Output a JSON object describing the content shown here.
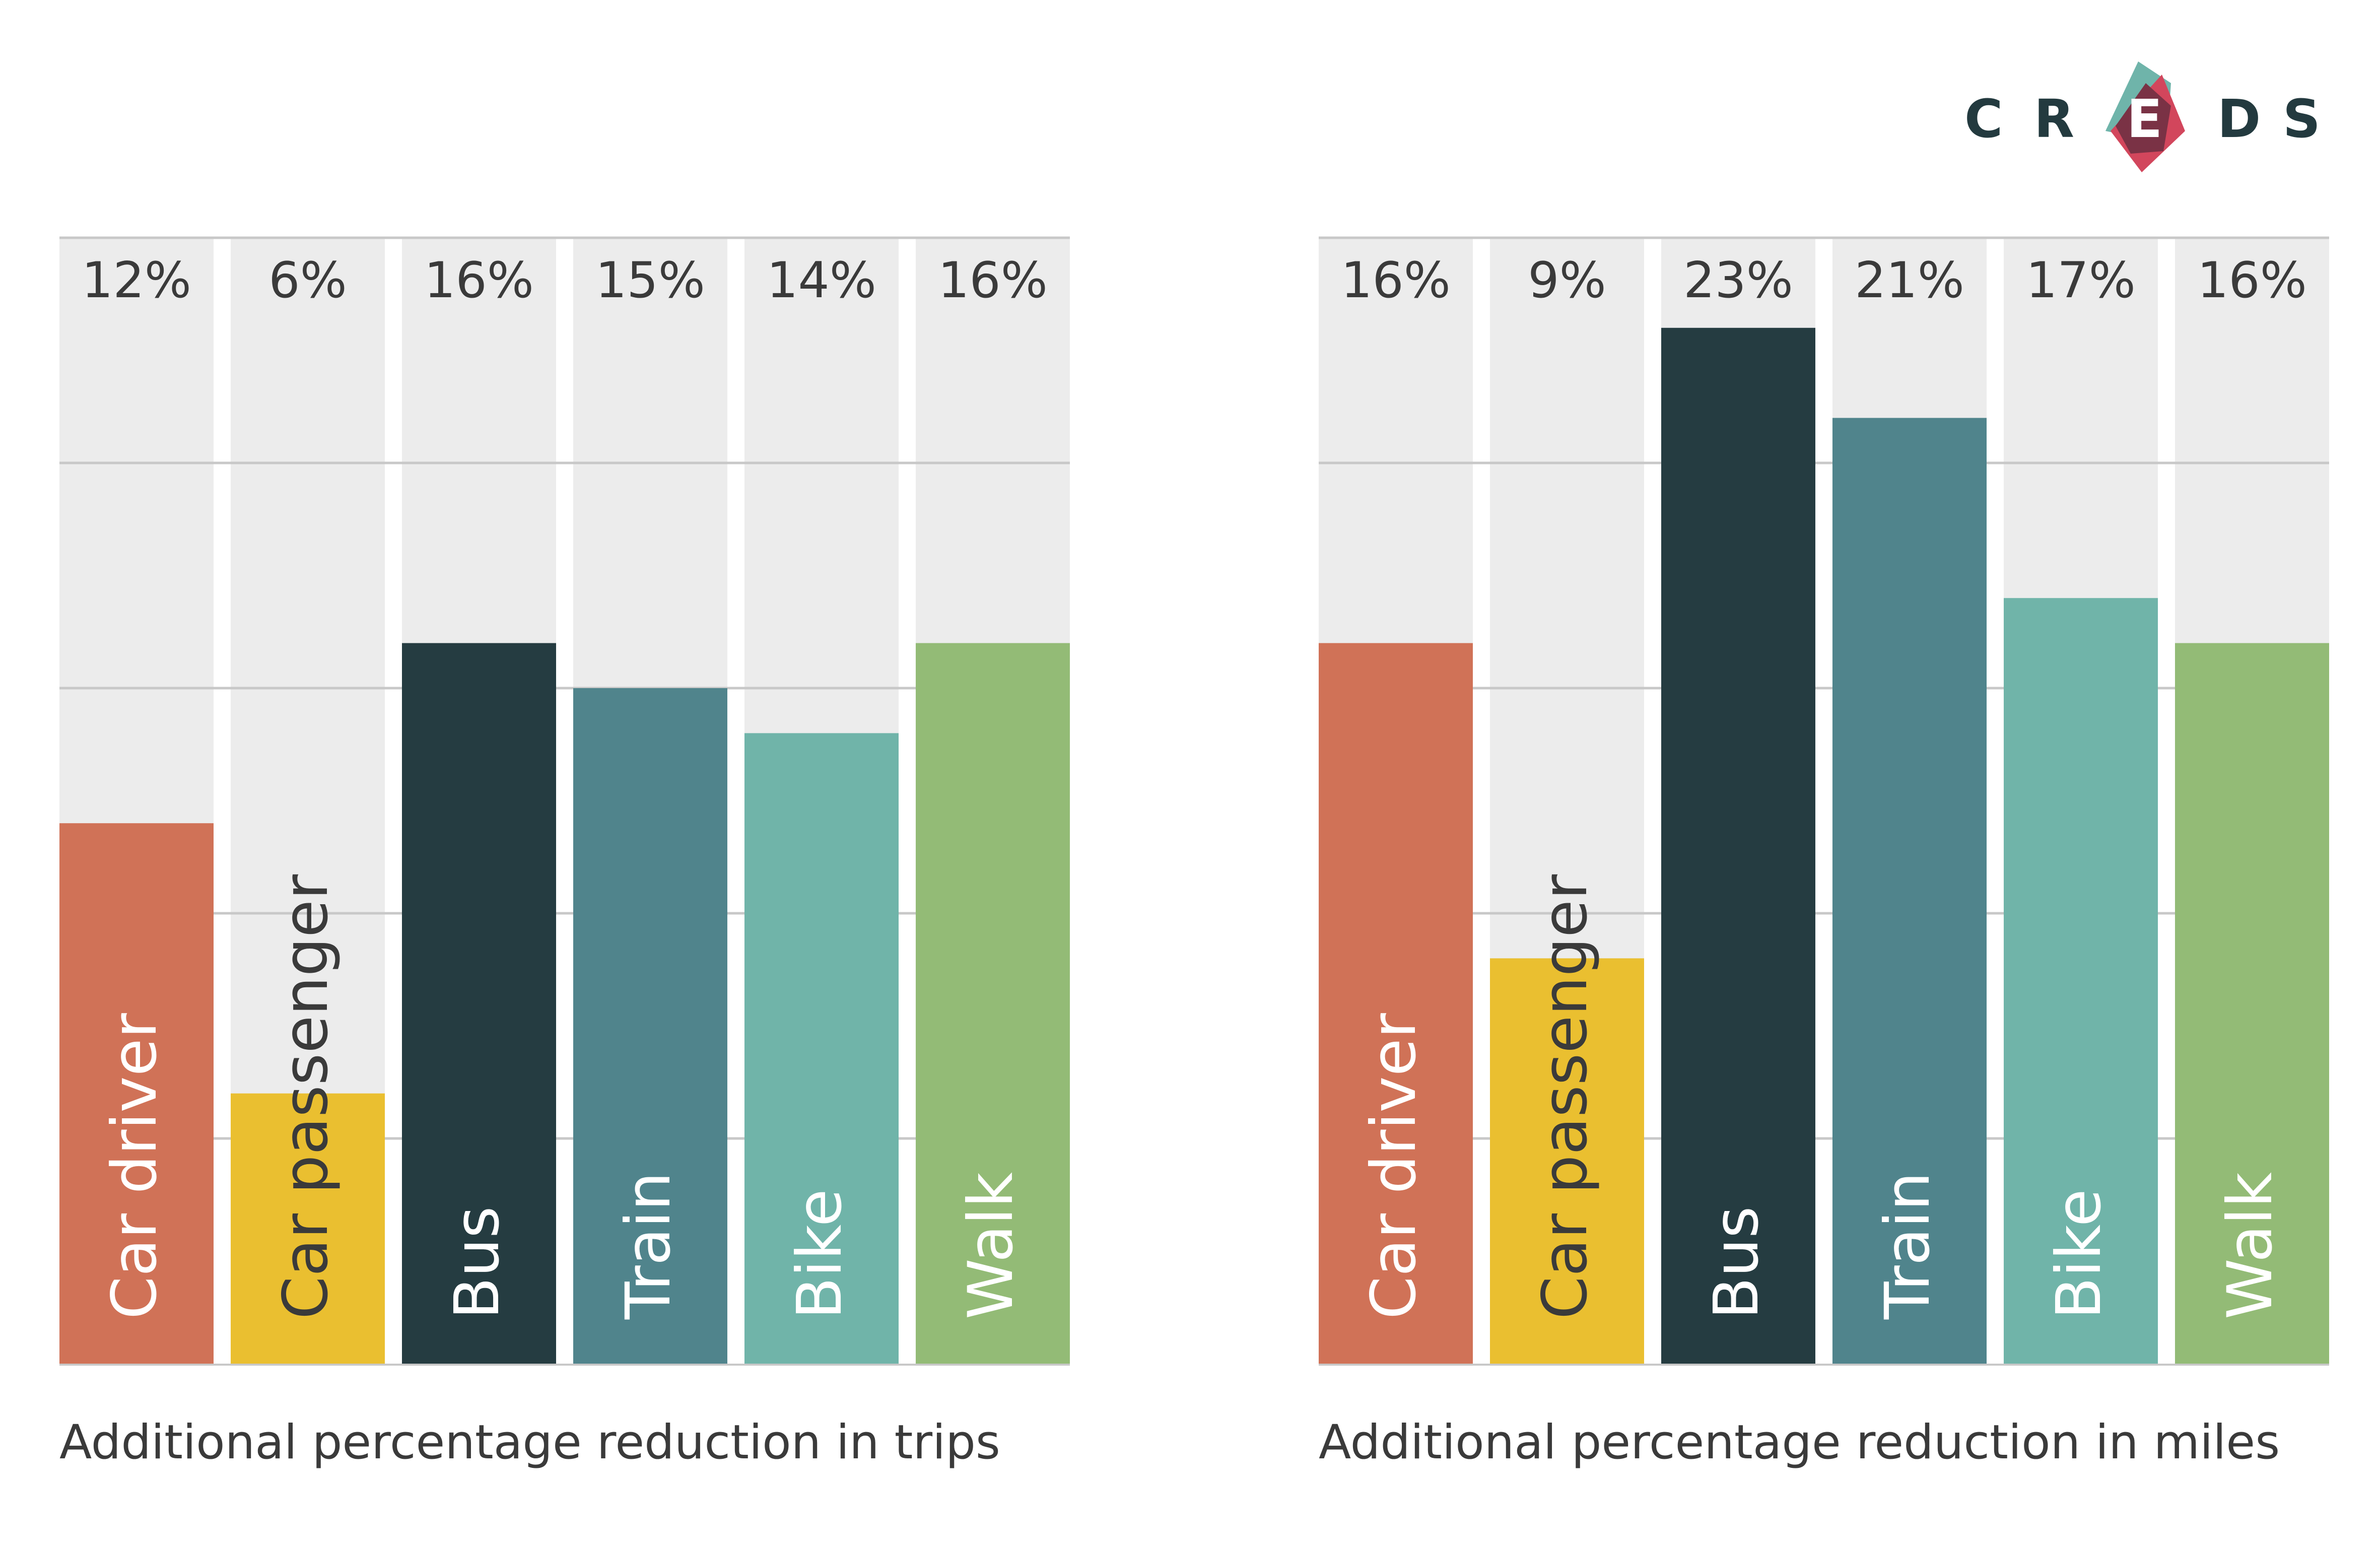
{
  "logo": {
    "letters": [
      "C",
      "R",
      "E",
      "D",
      "S"
    ],
    "colors": {
      "text": "#233a3f",
      "teal": "#6fb4aa",
      "red": "#d2465c",
      "dark": "#7a3245"
    }
  },
  "colors": {
    "panel": "#ececec",
    "gridline": "#c8c8c8",
    "label_text_dark": "#3a3a3a",
    "label_text_light": "#ffffff"
  },
  "chart_data": [
    {
      "type": "bar",
      "title": "Additional percentage reduction in trips",
      "categories": [
        "Car driver",
        "Car passenger",
        "Bus",
        "Train",
        "Bike",
        "Walk"
      ],
      "values": [
        12,
        6,
        16,
        15,
        14,
        16
      ],
      "value_labels": [
        "12%",
        "6%",
        "16%",
        "15%",
        "14%",
        "16%"
      ],
      "colors": [
        "#d07257",
        "#eabf30",
        "#253c41",
        "#50848c",
        "#70b4a9",
        "#93bb76"
      ],
      "label_dark": [
        false,
        true,
        false,
        false,
        false,
        false
      ],
      "ylim": [
        0,
        25
      ],
      "grid": true
    },
    {
      "type": "bar",
      "title": "Additional percentage reduction in miles",
      "categories": [
        "Car driver",
        "Car passenger",
        "Bus",
        "Train",
        "Bike",
        "Walk"
      ],
      "values": [
        16,
        9,
        23,
        21,
        17,
        16
      ],
      "value_labels": [
        "16%",
        "9%",
        "23%",
        "21%",
        "17%",
        "16%"
      ],
      "colors": [
        "#d07257",
        "#eabf30",
        "#253c41",
        "#50848c",
        "#70b4a9",
        "#93bb76"
      ],
      "label_dark": [
        false,
        true,
        false,
        false,
        false,
        false
      ],
      "ylim": [
        0,
        25
      ],
      "grid": true
    }
  ]
}
